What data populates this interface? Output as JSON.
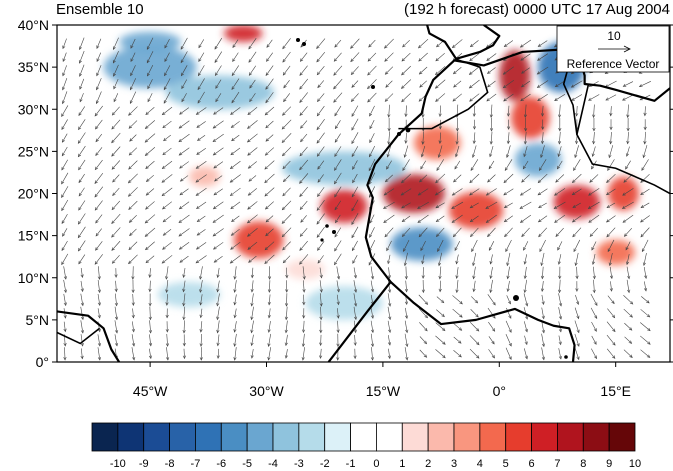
{
  "header": {
    "left_title": "Ensemble 10",
    "right_title": "(192 h forecast) 0000 UTC 17 Aug 2004"
  },
  "map": {
    "lon_range": [
      -57,
      22
    ],
    "lat_range": [
      0,
      40
    ],
    "lon_ticks": [
      {
        "value": -45,
        "label": "45°W"
      },
      {
        "value": -30,
        "label": "30°W"
      },
      {
        "value": -15,
        "label": "15°W"
      },
      {
        "value": 0,
        "label": "0°"
      },
      {
        "value": 15,
        "label": "15°E"
      }
    ],
    "lat_ticks": [
      {
        "value": 0,
        "label": "0°"
      },
      {
        "value": 5,
        "label": "5°N"
      },
      {
        "value": 10,
        "label": "10°N"
      },
      {
        "value": 15,
        "label": "15°N"
      },
      {
        "value": 20,
        "label": "20°N"
      },
      {
        "value": 25,
        "label": "25°N"
      },
      {
        "value": 30,
        "label": "30°N"
      },
      {
        "value": 35,
        "label": "35°N"
      },
      {
        "value": 40,
        "label": "40°N"
      }
    ]
  },
  "reference_vector": {
    "value_label": "10",
    "caption": "Reference Vector"
  },
  "colorbar": {
    "labels": [
      "-10",
      "-9",
      "-8",
      "-7",
      "-6",
      "-5",
      "-4",
      "-3",
      "-2",
      "-1",
      "0",
      "1",
      "2",
      "3",
      "4",
      "5",
      "6",
      "7",
      "8",
      "9",
      "10"
    ],
    "colors": [
      "#0a2550",
      "#0e3474",
      "#1b4c95",
      "#2862a8",
      "#2f72b5",
      "#4a8ec3",
      "#6aa6d0",
      "#8fc3dd",
      "#b5dcea",
      "#dcf1f8",
      "#ffffff",
      "#ffffff",
      "#fddbd6",
      "#fbb9ac",
      "#f9967f",
      "#f3694e",
      "#e63d2d",
      "#cf1f25",
      "#b0141e",
      "#8c0d14",
      "#650608"
    ]
  },
  "anomaly_blobs": [
    {
      "lon": -31,
      "lat": 14.5,
      "rx": 3.2,
      "ry": 2.2,
      "v": 6
    },
    {
      "lon": -20,
      "lat": 18.5,
      "rx": 3,
      "ry": 2,
      "v": 7
    },
    {
      "lon": -11,
      "lat": 20,
      "rx": 4,
      "ry": 2.3,
      "v": 8
    },
    {
      "lon": -3,
      "lat": 18,
      "rx": 3.5,
      "ry": 2.2,
      "v": 6
    },
    {
      "lon": 2,
      "lat": 34,
      "rx": 2,
      "ry": 3,
      "v": 8
    },
    {
      "lon": 4,
      "lat": 29,
      "rx": 2.5,
      "ry": 2.5,
      "v": 6
    },
    {
      "lon": 10,
      "lat": 19,
      "rx": 3,
      "ry": 2,
      "v": 7
    },
    {
      "lon": 16,
      "lat": 20,
      "rx": 2,
      "ry": 2,
      "v": 6
    },
    {
      "lon": 15,
      "lat": 13,
      "rx": 2.5,
      "ry": 1.5,
      "v": 5
    },
    {
      "lon": -33,
      "lat": 39,
      "rx": 2.5,
      "ry": 1,
      "v": 7
    },
    {
      "lon": -8,
      "lat": 26,
      "rx": 3,
      "ry": 2,
      "v": 5
    },
    {
      "lon": -45,
      "lat": 35,
      "rx": 6,
      "ry": 2.5,
      "v": -4
    },
    {
      "lon": -36,
      "lat": 32,
      "rx": 7,
      "ry": 2,
      "v": -3
    },
    {
      "lon": -20,
      "lat": 23,
      "rx": 8,
      "ry": 2,
      "v": -3
    },
    {
      "lon": -10,
      "lat": 14,
      "rx": 4,
      "ry": 2,
      "v": -5
    },
    {
      "lon": 8,
      "lat": 35,
      "rx": 3,
      "ry": 3,
      "v": -6
    },
    {
      "lon": 5,
      "lat": 24,
      "rx": 3,
      "ry": 2,
      "v": -4
    },
    {
      "lon": -20,
      "lat": 7,
      "rx": 5,
      "ry": 2,
      "v": -2
    },
    {
      "lon": -45,
      "lat": 38,
      "rx": 4,
      "ry": 1.2,
      "v": -4
    },
    {
      "lon": -38,
      "lat": 22,
      "rx": 2,
      "ry": 1.2,
      "v": 3
    },
    {
      "lon": -25,
      "lat": 11,
      "rx": 2.5,
      "ry": 1.2,
      "v": 2
    },
    {
      "lon": -40,
      "lat": 8,
      "rx": 4,
      "ry": 1.5,
      "v": -2
    }
  ],
  "coastlines": [
    [
      [
        -22,
        0
      ],
      [
        -17,
        6
      ],
      [
        -14,
        9.5
      ],
      [
        -16.5,
        12.5
      ],
      [
        -17.2,
        14.8
      ],
      [
        -16.3,
        19.5
      ],
      [
        -17,
        21
      ],
      [
        -16,
        23.5
      ],
      [
        -13,
        27
      ],
      [
        -10,
        29.5
      ],
      [
        -9.5,
        31.5
      ],
      [
        -8.5,
        33.5
      ],
      [
        -5.8,
        35.8
      ],
      [
        -2,
        35.2
      ],
      [
        3,
        36.8
      ],
      [
        10,
        37.2
      ],
      [
        11,
        34
      ],
      [
        11,
        33
      ],
      [
        13,
        32.8
      ],
      [
        15,
        32.3
      ],
      [
        20,
        31
      ],
      [
        22,
        32.5
      ]
    ],
    [
      [
        -14,
        9.5
      ],
      [
        -11,
        7
      ],
      [
        -7.5,
        4.5
      ],
      [
        -3,
        5
      ],
      [
        2,
        6.3
      ],
      [
        5,
        5
      ],
      [
        7,
        4.3
      ],
      [
        9,
        4
      ],
      [
        9.7,
        2
      ],
      [
        9.5,
        0
      ]
    ],
    [
      [
        -57,
        6
      ],
      [
        -53,
        5.5
      ],
      [
        -51,
        4
      ],
      [
        -50,
        1.5
      ],
      [
        -49,
        0
      ]
    ],
    [
      [
        -5.5,
        35.9
      ],
      [
        -7,
        38
      ],
      [
        -9,
        39
      ],
      [
        -9.3,
        40
      ]
    ],
    [
      [
        -2,
        40
      ],
      [
        0,
        38.7
      ],
      [
        -0.8,
        37.6
      ],
      [
        -2.5,
        36.8
      ],
      [
        -5.5,
        36
      ]
    ]
  ],
  "borders": [
    [
      [
        -5.5,
        35.9
      ],
      [
        -2.5,
        35
      ],
      [
        -1.5,
        32
      ],
      [
        -4,
        30
      ],
      [
        -8.7,
        27.7
      ],
      [
        -13,
        27.7
      ]
    ],
    [
      [
        9.5,
        37
      ],
      [
        8.3,
        33
      ],
      [
        9.5,
        30.5
      ],
      [
        10,
        27
      ]
    ],
    [
      [
        11.5,
        33
      ],
      [
        10,
        27
      ],
      [
        12,
        23.5
      ],
      [
        15,
        23
      ],
      [
        20,
        21
      ],
      [
        22,
        20
      ]
    ],
    [
      [
        -57,
        3.5
      ],
      [
        -54,
        2.2
      ],
      [
        -51.5,
        4
      ]
    ]
  ]
}
